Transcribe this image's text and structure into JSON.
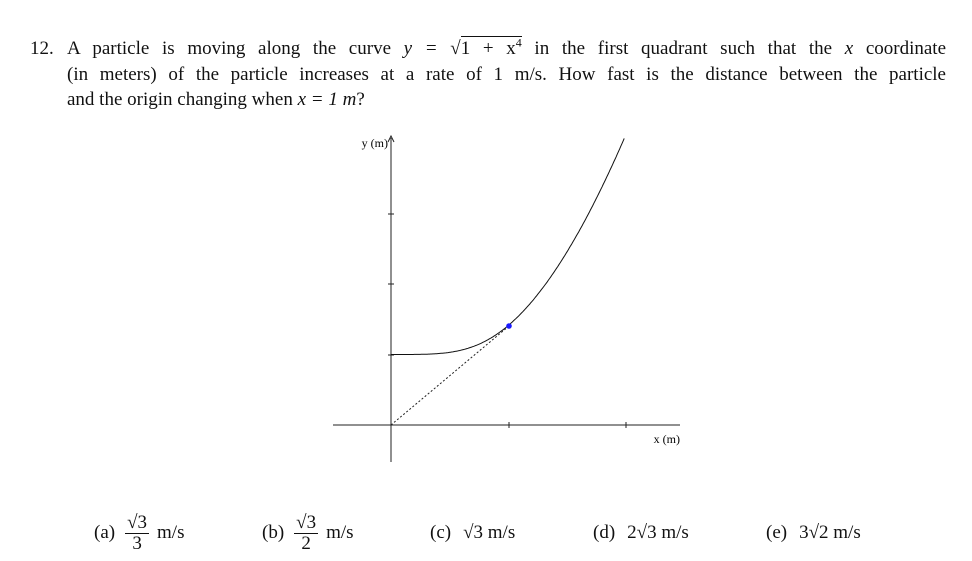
{
  "question": {
    "number": "12.",
    "lines": [
      [
        "A particle is moving along the curve ",
        "y = √",
        "1 + x",
        "4",
        " in the first quadrant such that the ",
        "x",
        " coordinate"
      ],
      [
        "(in meters) of the particle increases at a rate of 1 m/s. How fast is the distance between the particle"
      ],
      [
        "and the origin changing when ",
        "x = 1 m",
        "?"
      ]
    ]
  },
  "figure": {
    "y_label": "y (m)",
    "x_label": "x (m)"
  },
  "choices": [
    {
      "label": "(a)",
      "numerator": "√3",
      "denominator": "3",
      "unit": "m/s"
    },
    {
      "label": "(b)",
      "numerator": "√3",
      "denominator": "2",
      "unit": "m/s"
    },
    {
      "label": "(c)",
      "text": "√3 m/s"
    },
    {
      "label": "(d)",
      "text": "2√3 m/s"
    },
    {
      "label": "(e)",
      "text": "3√2 m/s"
    }
  ]
}
